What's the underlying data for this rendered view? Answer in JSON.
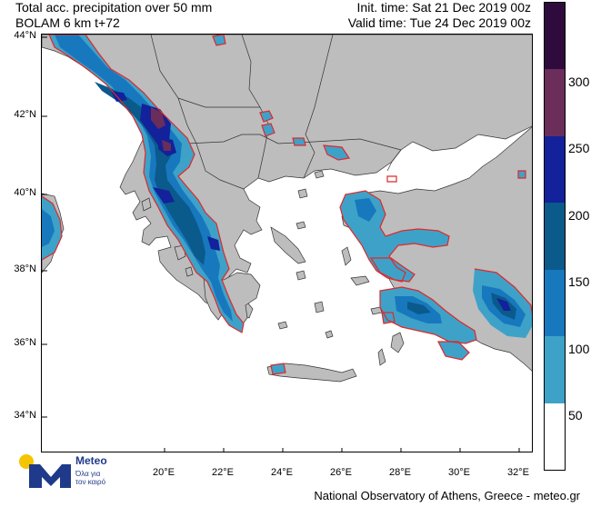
{
  "header": {
    "left_line1": "Total acc. precipitation over 50 mm",
    "left_line2": "BOLAM 6 km t+72",
    "right_line1": "Init. time: Sat 21 Dec 2019 00z",
    "right_line2": "Valid time: Tue 24 Dec 2019 00z"
  },
  "map": {
    "lat_labels": [
      "44°N",
      "42°N",
      "40°N",
      "38°N",
      "36°N",
      "34°N"
    ],
    "lon_labels": [
      "20°E",
      "22°E",
      "24°E",
      "26°E",
      "28°E",
      "30°E",
      "32°E"
    ],
    "colors": {
      "land": "#bdbdbd",
      "sea": "#ffffff",
      "border": "#333333",
      "contour": "#e0282a"
    }
  },
  "legend": {
    "labels": [
      "300",
      "250",
      "200",
      "150",
      "100",
      "50"
    ],
    "colors": [
      "#2e0b3c",
      "#6b2d5a",
      "#13219a",
      "#0a5a8c",
      "#1878be",
      "#3ea2c8",
      "#ffffff"
    ]
  },
  "logo": {
    "name": "Meteo",
    "tagline1": "Όλα για",
    "tagline2": "τον καιρό",
    "colors": {
      "sun": "#f5c400",
      "mark": "#1f3a8a"
    }
  },
  "footer": "National Observatory of Athens, Greece - meteo.gr"
}
